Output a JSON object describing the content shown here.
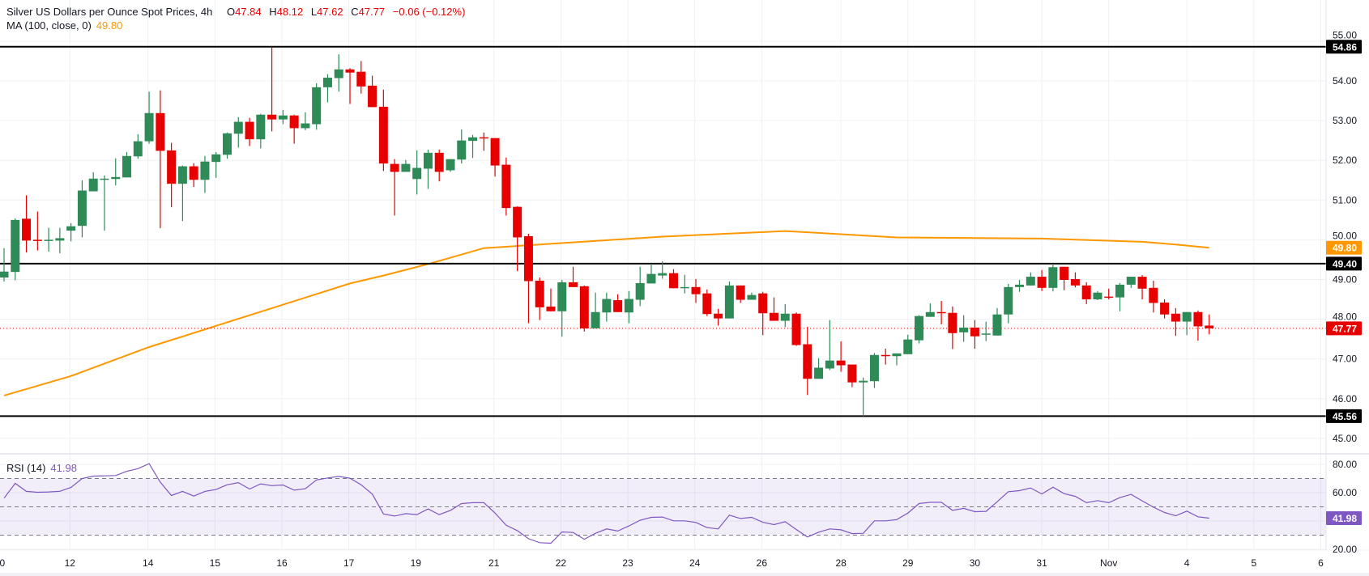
{
  "legend": {
    "symbol": "Silver US Dollars per Ounce Spot Prices, 4h",
    "ohlc": [
      {
        "k": "O",
        "v": "47.84"
      },
      {
        "k": "H",
        "v": "48.12"
      },
      {
        "k": "L",
        "v": "47.62"
      },
      {
        "k": "C",
        "v": "47.77"
      }
    ],
    "change": "−0.06 (−0.12%)",
    "ma_label": "MA (100, close, 0)",
    "ma_value": "49.80",
    "rsi_label": "RSI (14)",
    "rsi_value": "41.98"
  },
  "colors": {
    "up": "#2e8b57",
    "down": "#e60000",
    "ma": "#ff9800",
    "rsi": "#7e57c2",
    "levels": "#000000",
    "last_price": "#e60000"
  },
  "chart_data": {
    "type": "candlestick",
    "interval": "4h",
    "ylim": [
      44.6,
      55.2
    ],
    "grid": true,
    "candles_ohlc": [
      [
        49.05,
        49.79,
        48.95,
        49.2
      ],
      [
        49.19,
        50.54,
        48.98,
        50.5
      ],
      [
        50.53,
        51.12,
        49.68,
        49.98
      ],
      [
        50.0,
        50.71,
        49.73,
        49.97
      ],
      [
        49.97,
        50.3,
        49.7,
        50.0
      ],
      [
        49.98,
        50.3,
        49.66,
        50.04
      ],
      [
        50.23,
        50.42,
        49.96,
        50.34
      ],
      [
        50.35,
        51.5,
        50.06,
        51.24
      ],
      [
        51.22,
        51.7,
        51.22,
        51.54
      ],
      [
        51.53,
        51.62,
        50.23,
        51.54
      ],
      [
        51.53,
        52.05,
        51.37,
        51.58
      ],
      [
        51.57,
        52.21,
        51.57,
        52.11
      ],
      [
        52.1,
        52.66,
        52.04,
        52.48
      ],
      [
        52.48,
        53.73,
        52.42,
        53.19
      ],
      [
        53.19,
        53.76,
        50.29,
        52.24
      ],
      [
        52.25,
        52.44,
        50.82,
        51.41
      ],
      [
        51.41,
        51.87,
        50.47,
        51.85
      ],
      [
        51.85,
        51.93,
        51.33,
        51.51
      ],
      [
        51.51,
        52.11,
        51.18,
        51.97
      ],
      [
        51.96,
        52.21,
        51.56,
        52.15
      ],
      [
        52.14,
        52.7,
        52.04,
        52.68
      ],
      [
        52.67,
        53.09,
        52.32,
        52.97
      ],
      [
        52.97,
        53.07,
        52.36,
        52.53
      ],
      [
        52.53,
        53.17,
        52.3,
        53.15
      ],
      [
        53.15,
        54.86,
        52.73,
        53.03
      ],
      [
        53.03,
        53.27,
        52.91,
        53.13
      ],
      [
        53.13,
        53.15,
        52.42,
        52.81
      ],
      [
        52.81,
        53.21,
        52.76,
        52.93
      ],
      [
        52.91,
        53.94,
        52.77,
        53.84
      ],
      [
        53.84,
        54.17,
        53.46,
        54.08
      ],
      [
        54.07,
        54.67,
        53.73,
        54.29
      ],
      [
        54.29,
        54.32,
        53.42,
        54.21
      ],
      [
        54.23,
        54.5,
        53.68,
        53.86
      ],
      [
        53.88,
        54.13,
        53.34,
        53.34
      ],
      [
        53.35,
        53.78,
        51.73,
        51.92
      ],
      [
        51.91,
        52.03,
        50.61,
        51.71
      ],
      [
        51.71,
        52.01,
        51.71,
        51.91
      ],
      [
        51.53,
        52.25,
        51.14,
        51.81
      ],
      [
        51.79,
        52.27,
        51.28,
        52.19
      ],
      [
        52.19,
        52.27,
        51.47,
        51.71
      ],
      [
        51.75,
        52.03,
        51.71,
        52.03
      ],
      [
        52.02,
        52.78,
        51.92,
        52.5
      ],
      [
        52.49,
        52.64,
        52.06,
        52.58
      ],
      [
        52.58,
        52.7,
        52.24,
        52.57
      ],
      [
        52.56,
        52.56,
        51.59,
        51.87
      ],
      [
        51.89,
        52.07,
        50.61,
        50.8
      ],
      [
        50.83,
        50.84,
        49.21,
        50.06
      ],
      [
        50.09,
        50.15,
        47.9,
        48.96
      ],
      [
        48.97,
        49.05,
        47.98,
        48.3
      ],
      [
        48.32,
        48.77,
        48.2,
        48.2
      ],
      [
        48.2,
        48.99,
        47.56,
        48.93
      ],
      [
        48.93,
        49.32,
        48.81,
        48.81
      ],
      [
        48.83,
        48.85,
        47.69,
        47.77
      ],
      [
        47.77,
        48.67,
        47.77,
        48.18
      ],
      [
        48.17,
        48.67,
        47.94,
        48.51
      ],
      [
        48.48,
        48.63,
        48.18,
        48.18
      ],
      [
        48.17,
        48.71,
        47.9,
        48.51
      ],
      [
        48.49,
        49.32,
        48.33,
        48.91
      ],
      [
        48.9,
        49.4,
        48.9,
        49.14
      ],
      [
        49.1,
        49.46,
        49.02,
        49.16
      ],
      [
        49.16,
        49.26,
        48.78,
        48.78
      ],
      [
        48.8,
        49.12,
        48.65,
        48.81
      ],
      [
        48.81,
        49.01,
        48.41,
        48.63
      ],
      [
        48.65,
        48.75,
        48.08,
        48.13
      ],
      [
        48.14,
        48.26,
        47.84,
        48.02
      ],
      [
        48.02,
        48.95,
        48.02,
        48.85
      ],
      [
        48.85,
        48.85,
        48.41,
        48.49
      ],
      [
        48.49,
        48.67,
        48.49,
        48.61
      ],
      [
        48.65,
        48.69,
        47.6,
        48.15
      ],
      [
        48.16,
        48.55,
        47.96,
        47.96
      ],
      [
        47.96,
        48.38,
        47.8,
        48.14
      ],
      [
        48.14,
        48.17,
        47.33,
        47.35
      ],
      [
        47.37,
        47.81,
        46.09,
        46.5
      ],
      [
        46.5,
        47.02,
        46.5,
        46.78
      ],
      [
        46.76,
        47.98,
        46.72,
        46.96
      ],
      [
        46.96,
        47.44,
        46.68,
        46.84
      ],
      [
        46.86,
        46.86,
        46.29,
        46.41
      ],
      [
        46.41,
        46.53,
        45.56,
        46.45
      ],
      [
        46.44,
        47.15,
        46.27,
        47.1
      ],
      [
        47.1,
        47.26,
        46.86,
        47.07
      ],
      [
        47.07,
        47.14,
        46.84,
        47.14
      ],
      [
        47.12,
        47.61,
        47.12,
        47.49
      ],
      [
        47.47,
        48.1,
        47.39,
        48.08
      ],
      [
        48.06,
        48.4,
        48.06,
        48.18
      ],
      [
        48.18,
        48.46,
        47.87,
        48.17
      ],
      [
        48.16,
        48.32,
        47.25,
        47.65
      ],
      [
        47.67,
        48.1,
        47.43,
        47.79
      ],
      [
        47.79,
        47.98,
        47.26,
        47.57
      ],
      [
        47.62,
        47.94,
        47.45,
        47.64
      ],
      [
        47.59,
        48.28,
        47.59,
        48.12
      ],
      [
        48.12,
        48.89,
        47.9,
        48.81
      ],
      [
        48.81,
        48.99,
        48.69,
        48.87
      ],
      [
        48.85,
        49.18,
        48.85,
        49.07
      ],
      [
        49.07,
        49.24,
        48.71,
        48.79
      ],
      [
        48.79,
        49.4,
        48.7,
        49.31
      ],
      [
        49.32,
        49.32,
        48.73,
        48.99
      ],
      [
        49.01,
        49.18,
        48.8,
        48.85
      ],
      [
        48.85,
        48.93,
        48.38,
        48.5
      ],
      [
        48.5,
        48.71,
        48.48,
        48.67
      ],
      [
        48.57,
        48.77,
        48.5,
        48.56
      ],
      [
        48.55,
        48.91,
        48.2,
        48.87
      ],
      [
        48.87,
        49.07,
        48.79,
        49.07
      ],
      [
        49.07,
        49.11,
        48.5,
        48.77
      ],
      [
        48.79,
        48.97,
        48.17,
        48.41
      ],
      [
        48.42,
        48.5,
        48.02,
        48.12
      ],
      [
        48.14,
        48.28,
        47.58,
        47.94
      ],
      [
        47.94,
        48.18,
        47.6,
        48.18
      ],
      [
        48.18,
        48.22,
        47.46,
        47.82
      ],
      [
        47.84,
        48.12,
        47.62,
        47.77
      ]
    ],
    "ma100_points_bar_value": [
      [
        1,
        46.08
      ],
      [
        7,
        46.57
      ],
      [
        14,
        47.3
      ],
      [
        32,
        48.9
      ],
      [
        35,
        49.1
      ],
      [
        39,
        49.39
      ],
      [
        44,
        49.79
      ],
      [
        60,
        50.08
      ],
      [
        71,
        50.22
      ],
      [
        73,
        50.19
      ],
      [
        81,
        50.06
      ],
      [
        94,
        50.03
      ],
      [
        103,
        49.95
      ],
      [
        106,
        49.88
      ],
      [
        109,
        49.8
      ]
    ],
    "horizontal_levels": [
      {
        "value": 54.86,
        "label": "54.86"
      },
      {
        "value": 49.4,
        "label": "49.40"
      },
      {
        "value": 45.56,
        "label": "45.56"
      }
    ],
    "last_price": {
      "value": 47.77,
      "label": "47.77"
    },
    "ma_badge": {
      "value": 49.8,
      "label": "49.80"
    },
    "price_axis": {
      "values": [
        45,
        46,
        47,
        48,
        49,
        50,
        51,
        52,
        53,
        54,
        55
      ],
      "labels": [
        "45.00",
        "46.00",
        "47.00",
        "48.00",
        "49.00",
        "50.00",
        "51.00",
        "52.00",
        "53.00",
        "54.00",
        "55.00"
      ]
    },
    "rsi": {
      "period": 14,
      "ylim": [
        18,
        85
      ],
      "bands": [
        30,
        50,
        70
      ],
      "values": [
        56.1,
        66.6,
        60.9,
        60.3,
        60.5,
        61.0,
        63.7,
        70.0,
        71.7,
        71.9,
        72.1,
        75.1,
        77.0,
        80.5,
        67.5,
        58.0,
        60.9,
        57.6,
        60.9,
        62.2,
        65.6,
        67.1,
        62.6,
        66.2,
        65.0,
        65.4,
        61.8,
        62.8,
        69.0,
        70.4,
        71.5,
        70.2,
        65.6,
        59.0,
        45.0,
        43.5,
        45.2,
        44.5,
        48.5,
        44.5,
        47.5,
        52.3,
        52.9,
        52.9,
        45.6,
        37.0,
        33.2,
        27.5,
        24.7,
        24.3,
        32.3,
        31.9,
        27.1,
        31.3,
        34.4,
        32.9,
        36.5,
        40.5,
        42.6,
        42.8,
        40.1,
        40.1,
        39.0,
        35.3,
        34.4,
        44.1,
        41.8,
        42.6,
        39.1,
        37.4,
        39.5,
        34.0,
        28.7,
        32.1,
        34.4,
        33.8,
        31.1,
        31.3,
        40.1,
        40.1,
        41.0,
        45.6,
        52.3,
        53.2,
        53.2,
        47.5,
        48.9,
        46.6,
        46.8,
        53.6,
        60.7,
        61.4,
        63.3,
        59.1,
        63.9,
        59.3,
        57.4,
        52.9,
        54.4,
        52.9,
        56.5,
        58.8,
        54.2,
        49.8,
        46.0,
        43.7,
        47.0,
        43.0,
        41.98
      ],
      "axis_values": [
        20,
        40,
        60,
        80
      ],
      "axis_labels": [
        "20.00",
        "",
        "60.00",
        "80.00"
      ],
      "last_label": "41.98"
    },
    "time_axis": [
      {
        "bar": 0.6,
        "label": "10"
      },
      {
        "bar": 6.9,
        "label": "12"
      },
      {
        "bar": 13.9,
        "label": "14"
      },
      {
        "bar": 19.9,
        "label": "15"
      },
      {
        "bar": 25.9,
        "label": "16"
      },
      {
        "bar": 31.9,
        "label": "17"
      },
      {
        "bar": 37.9,
        "label": "19"
      },
      {
        "bar": 44.9,
        "label": "21"
      },
      {
        "bar": 50.9,
        "label": "22"
      },
      {
        "bar": 56.9,
        "label": "23"
      },
      {
        "bar": 62.9,
        "label": "24"
      },
      {
        "bar": 68.9,
        "label": "26"
      },
      {
        "bar": 76,
        "label": "28"
      },
      {
        "bar": 82,
        "label": "29"
      },
      {
        "bar": 88,
        "label": "30"
      },
      {
        "bar": 94,
        "label": "31"
      },
      {
        "bar": 100,
        "label": "Nov"
      },
      {
        "bar": 107,
        "label": "4"
      },
      {
        "bar": 113,
        "label": "5"
      },
      {
        "bar": 119,
        "label": "6"
      }
    ]
  }
}
